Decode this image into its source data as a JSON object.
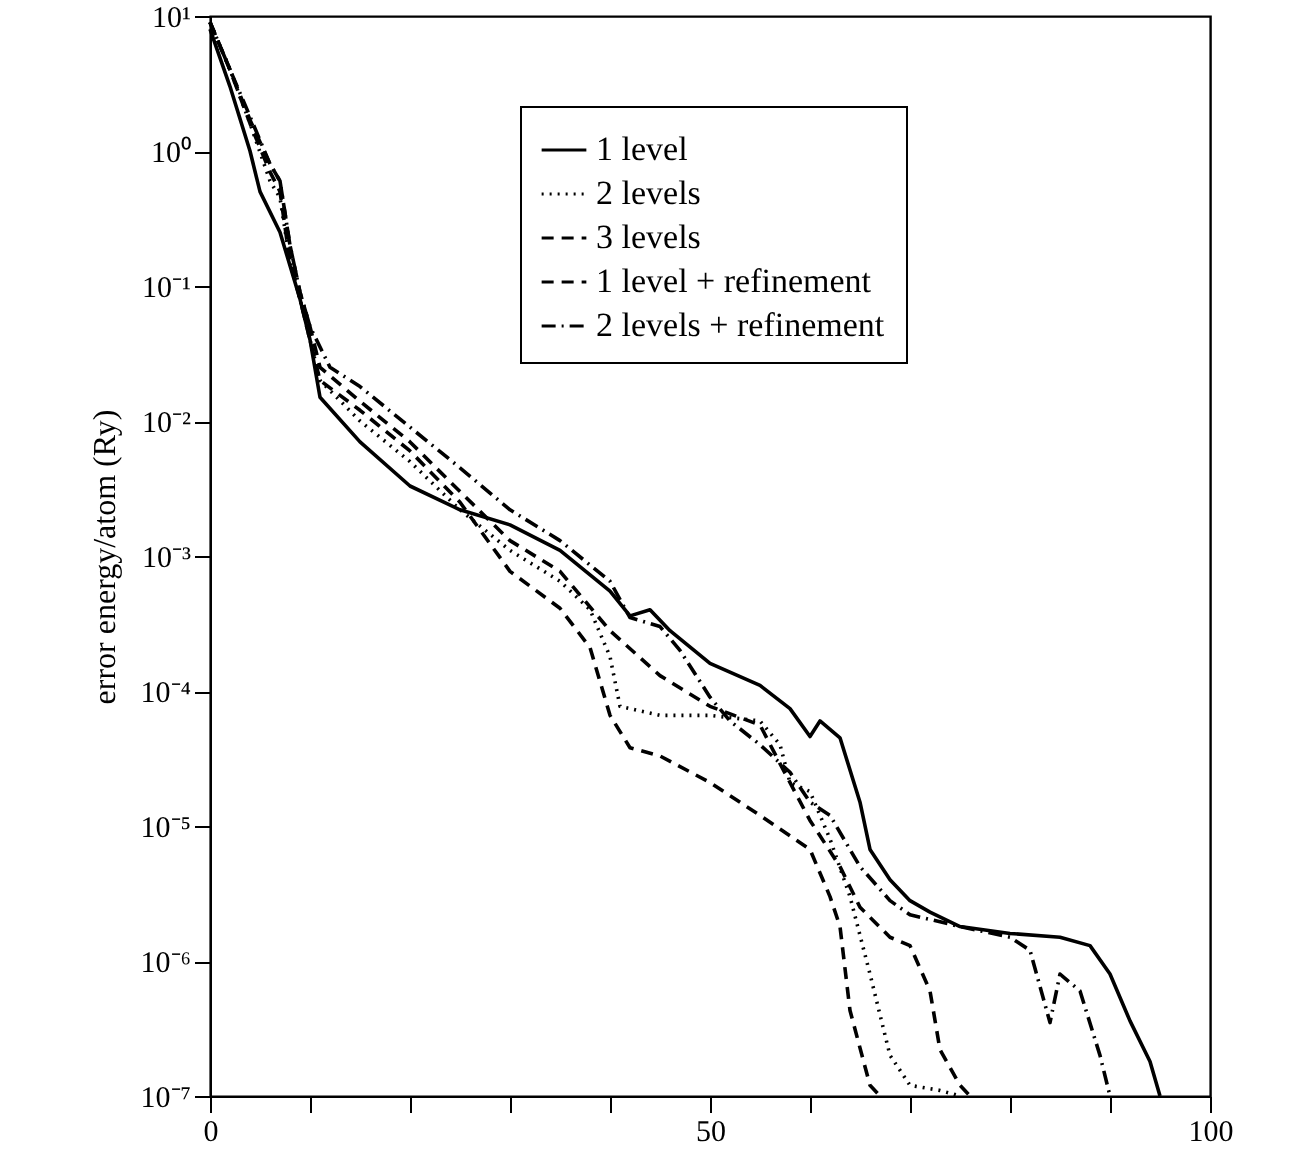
{
  "chart_data": {
    "type": "line",
    "ylabel": "error energy/atom (Ry)",
    "log": "y",
    "legend": "top right",
    "grid": false,
    "xlim": [
      0,
      100
    ],
    "xticks": [
      0,
      {
        "value": 10,
        "label": null
      },
      {
        "value": 20,
        "label": null
      },
      {
        "value": 30,
        "label": null
      },
      {
        "value": 40,
        "label": null
      },
      50,
      {
        "value": 60,
        "label": null
      },
      {
        "value": 70,
        "label": null
      },
      {
        "value": 80,
        "label": null
      },
      {
        "value": 90,
        "label": null
      },
      100
    ],
    "ylim": [
      1e-07,
      10
    ],
    "yticks": [
      {
        "value": 1e-07,
        "label": "10⁻⁷"
      },
      {
        "value": 1e-06,
        "label": "10⁻⁶"
      },
      {
        "value": 1e-05,
        "label": "10⁻⁵"
      },
      {
        "value": 0.0001,
        "label": "10⁻⁴"
      },
      {
        "value": 0.001,
        "label": "10⁻³"
      },
      {
        "value": 0.01,
        "label": "10⁻²"
      },
      {
        "value": 0.1,
        "label": "10⁻¹"
      },
      {
        "value": 1,
        "label": "10⁰"
      },
      {
        "value": 10,
        "label": "10¹"
      }
    ],
    "series": [
      {
        "name": "1 level",
        "color": "#000000",
        "line_style": "solid",
        "x": [
          0,
          2,
          4,
          5,
          7,
          9,
          10,
          11,
          15,
          20,
          25,
          30,
          35,
          40,
          42,
          44,
          46,
          50,
          55,
          58,
          60,
          61,
          63,
          65,
          66,
          68,
          70,
          72,
          75,
          80,
          85,
          88,
          90,
          92,
          94,
          95
        ],
        "values": [
          8,
          3,
          1,
          0.5,
          0.25,
          0.08,
          0.04,
          0.015,
          0.007,
          0.0033,
          0.0022,
          0.0017,
          0.0011,
          0.00055,
          0.00036,
          0.0004,
          0.00028,
          0.00016,
          0.00011,
          7.4e-05,
          4.6e-05,
          6e-05,
          4.5e-05,
          1.5e-05,
          6.7e-06,
          4e-06,
          2.8e-06,
          2.3e-06,
          1.8e-06,
          1.6e-06,
          1.5e-06,
          1.3e-06,
          8e-07,
          3.6e-07,
          1.8e-07,
          1e-07
        ]
      },
      {
        "name": "2 levels",
        "color": "#000000",
        "line_style": "dotted",
        "x": [
          0,
          2,
          4,
          6,
          7,
          8,
          9,
          10,
          11,
          15,
          20,
          25,
          30,
          35,
          38,
          40,
          41,
          45,
          50,
          55,
          57,
          58,
          60,
          62,
          64,
          66,
          68,
          70,
          73,
          75
        ],
        "values": [
          9,
          4,
          1.6,
          0.6,
          0.45,
          0.15,
          0.08,
          0.04,
          0.02,
          0.01,
          0.005,
          0.0022,
          0.0011,
          0.00065,
          0.0004,
          0.00018,
          7.7e-05,
          6.6e-05,
          6.6e-05,
          6e-05,
          4e-05,
          2.1e-05,
          1.8e-05,
          8e-06,
          3e-06,
          8e-07,
          2e-07,
          1.2e-07,
          1.1e-07,
          1e-07
        ]
      },
      {
        "name": "3 levels",
        "color": "#000000",
        "line_style": "dashed",
        "x": [
          0,
          2,
          4,
          6,
          7,
          8,
          9,
          10,
          11,
          15,
          20,
          25,
          30,
          35,
          38,
          40,
          42,
          45,
          50,
          55,
          60,
          62,
          63,
          64,
          66,
          67
        ],
        "values": [
          9,
          4,
          1.6,
          0.7,
          0.5,
          0.15,
          0.08,
          0.04,
          0.02,
          0.012,
          0.006,
          0.0025,
          0.00077,
          0.00041,
          0.00021,
          6.6e-05,
          3.8e-05,
          3.3e-05,
          2.1e-05,
          1.2e-05,
          6.7e-06,
          3e-06,
          1.8e-06,
          4.3e-07,
          1.2e-07,
          1e-07
        ]
      },
      {
        "name": "1 level + refinement",
        "color": "#000000",
        "line_style": "dashed",
        "x": [
          0,
          2,
          4,
          6,
          7,
          8,
          9,
          10,
          11,
          15,
          20,
          25,
          30,
          35,
          40,
          45,
          50,
          55,
          57,
          60,
          63,
          65,
          68,
          70,
          72,
          73,
          75,
          76
        ],
        "values": [
          9,
          4,
          1.7,
          0.8,
          0.6,
          0.2,
          0.09,
          0.05,
          0.025,
          0.014,
          0.007,
          0.003,
          0.0013,
          0.00077,
          0.00028,
          0.00013,
          7.7e-05,
          5.6e-05,
          2.9e-05,
          1.1e-05,
          5e-06,
          2.5e-06,
          1.5e-06,
          1.3e-06,
          6e-07,
          2.2e-07,
          1.2e-07,
          1e-07
        ]
      },
      {
        "name": "2 levels + refinement",
        "color": "#000000",
        "line_style": "dashdot",
        "x": [
          0,
          2,
          4,
          6,
          7,
          8,
          9,
          10,
          12,
          15,
          20,
          25,
          30,
          35,
          40,
          42,
          45,
          47,
          50,
          52,
          55,
          58,
          60,
          62,
          65,
          68,
          70,
          75,
          80,
          82,
          84,
          85,
          87,
          89,
          90
        ],
        "values": [
          9,
          4,
          1.8,
          0.8,
          0.6,
          0.2,
          0.09,
          0.05,
          0.025,
          0.018,
          0.009,
          0.0045,
          0.0022,
          0.0013,
          0.00065,
          0.00035,
          0.0003,
          0.0002,
          9e-05,
          6e-05,
          4e-05,
          2.5e-05,
          1.5e-05,
          1.2e-05,
          5e-06,
          2.8e-06,
          2.2e-06,
          1.8e-06,
          1.5e-06,
          1.2e-06,
          3.5e-07,
          8e-07,
          6e-07,
          2e-07,
          1e-07
        ]
      }
    ]
  }
}
